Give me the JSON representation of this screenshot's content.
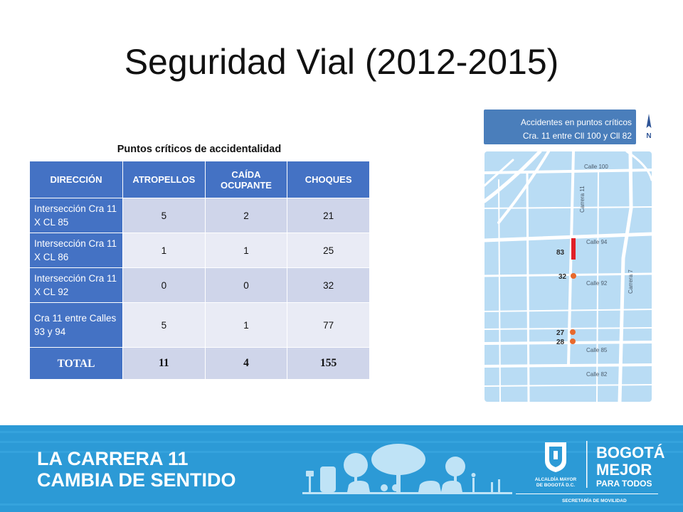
{
  "title": "Seguridad Vial (2012-2015)",
  "table": {
    "caption": "Puntos críticos de accidentalidad",
    "headers": [
      "DIRECCIÓN",
      "ATROPELLOS",
      "CAÍDA OCUPANTE",
      "CHOQUES"
    ],
    "rows": [
      {
        "direccion": "Intersección Cra 11 X CL 85",
        "atropellos": "5",
        "caida": "2",
        "choques": "21"
      },
      {
        "direccion": "Intersección Cra 11 X CL 86",
        "atropellos": "1",
        "caida": "1",
        "choques": "25"
      },
      {
        "direccion": "Intersección Cra 11 X CL 92",
        "atropellos": "0",
        "caida": "0",
        "choques": "32"
      },
      {
        "direccion": "Cra 11 entre Calles 93 y 94",
        "atropellos": "5",
        "caida": "1",
        "choques": "77"
      }
    ],
    "total": {
      "label": "TOTAL",
      "atropellos": "11",
      "caida": "4",
      "choques": "155"
    }
  },
  "map": {
    "header_line1": "Accidentes en puntos críticos",
    "header_line2": "Cra. 11 entre Cll 100 y Cll 82",
    "north_label": "N",
    "streets": {
      "calle100": "Calle 100",
      "carrera11": "Carrera 11",
      "calle94": "Calle 94",
      "calle92": "Calle 92",
      "carrera7": "Carrera 7",
      "calle85": "Calle 85",
      "calle82": "Calle 82"
    },
    "points": {
      "p83": "83",
      "p32": "32",
      "p27": "27",
      "p28": "28"
    },
    "colors": {
      "water": "#b9dcf4",
      "road": "#ffffff",
      "point": "#e8692c",
      "segment": "#e02027"
    }
  },
  "banner": {
    "line1": "LA CARRERA 11",
    "line2": "CAMBIA DE SENTIDO",
    "alcaldia_line1": "ALCALDÍA MAYOR",
    "alcaldia_line2": "DE BOGOTÁ D.C.",
    "slogan_line1": "BOGOTÁ",
    "slogan_line2": "MEJOR",
    "slogan_line3": "PARA TODOS",
    "secretaria": "SECRETARÍA DE MOVILIDAD",
    "bus_stop_icon": "bus-stop-icon",
    "colors": {
      "background": "#2c9ad6",
      "light": "#7fc4ea"
    }
  }
}
